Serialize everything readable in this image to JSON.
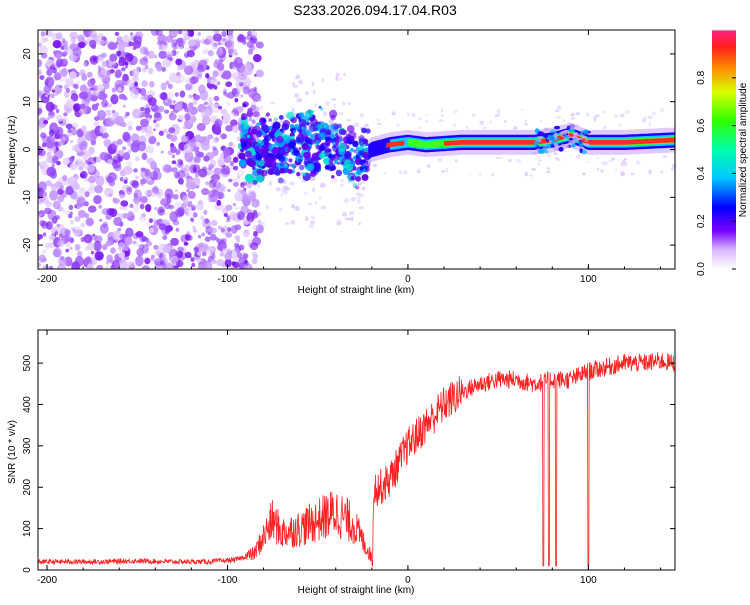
{
  "figure_title": "S233.2026.094.17.04.R03",
  "chart_data": [
    {
      "type": "heatmap",
      "xlabel": "Height of straight line (km)",
      "ylabel": "Frequency (Hz)",
      "xlim": [
        -205,
        148
      ],
      "ylim": [
        -25,
        25
      ],
      "xticks": [
        -200,
        -100,
        0,
        100
      ],
      "yticks": [
        -20,
        -10,
        0,
        10,
        20
      ],
      "colorbar": {
        "label": "Normalized spectral amplitude",
        "range": [
          0,
          1
        ],
        "ticks": [
          "0.0",
          "0.2",
          "0.4",
          "0.6",
          "0.8"
        ],
        "ticks_values": [
          0,
          0.2,
          0.4,
          0.6,
          0.8
        ]
      },
      "ridge": {
        "description_free": true,
        "points": [
          [
            -90,
            0
          ],
          [
            -70,
            0.5
          ],
          [
            -50,
            1.5
          ],
          [
            -40,
            1.5
          ],
          [
            -32,
            -1
          ],
          [
            -28,
            -2.5
          ],
          [
            -20,
            0
          ],
          [
            -10,
            1
          ],
          [
            0,
            1.5
          ],
          [
            10,
            1
          ],
          [
            30,
            1.5
          ],
          [
            70,
            1.5
          ],
          [
            80,
            2
          ],
          [
            90,
            3
          ],
          [
            100,
            1.5
          ],
          [
            120,
            1.5
          ],
          [
            148,
            2
          ]
        ],
        "noise_region_x": [
          -205,
          -90
        ]
      }
    },
    {
      "type": "line",
      "xlabel": "Height of straight line (km)",
      "ylabel": "SNR (10 * v/v)",
      "xlim": [
        -205,
        148
      ],
      "ylim": [
        0,
        580
      ],
      "xticks": [
        -200,
        -100,
        0,
        100
      ],
      "yticks": [
        0,
        100,
        200,
        300,
        400,
        500
      ],
      "color": "#ff2020",
      "series": [
        {
          "name": "SNR",
          "x": [
            -205,
            -190,
            -170,
            -150,
            -130,
            -110,
            -95,
            -85,
            -80,
            -75,
            -70,
            -60,
            -50,
            -40,
            -30,
            -20,
            -19,
            -15,
            -10,
            -5,
            0,
            10,
            20,
            30,
            40,
            50,
            60,
            70,
            80,
            90,
            100,
            110,
            120,
            130,
            140,
            148
          ],
          "y": [
            20,
            20,
            20,
            22,
            20,
            20,
            25,
            40,
            80,
            120,
            90,
            100,
            120,
            140,
            110,
            30,
            200,
            200,
            220,
            260,
            300,
            350,
            400,
            430,
            450,
            460,
            460,
            450,
            460,
            460,
            480,
            490,
            500,
            500,
            505,
            500
          ],
          "dips": [
            [
              75,
              10
            ],
            [
              78,
              10
            ],
            [
              82,
              10
            ],
            [
              100,
              10
            ]
          ]
        }
      ]
    }
  ]
}
